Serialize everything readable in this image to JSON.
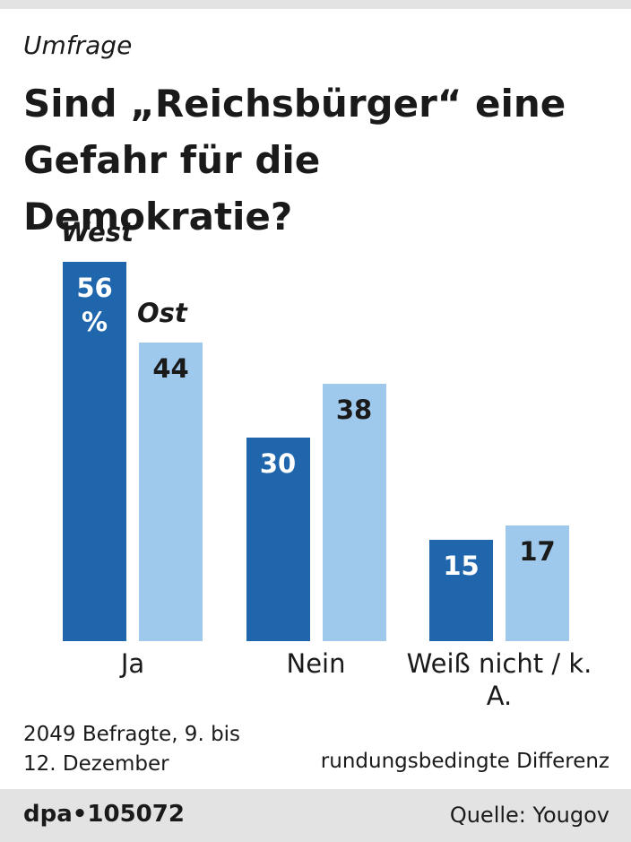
{
  "chart_data": {
    "type": "bar",
    "subtitle": "Umfrage",
    "title": "Sind „Reichsbürger“ eine Gefahr für die Demokratie?",
    "categories": [
      "Ja",
      "Nein",
      "Weiß nicht / k. A."
    ],
    "series": [
      {
        "name": "West",
        "color": "#1f66ad",
        "values": [
          56,
          30,
          15
        ],
        "value_labels": [
          "56 %",
          "30",
          "15"
        ]
      },
      {
        "name": "Ost",
        "color": "#9ec8ec",
        "values": [
          44,
          38,
          17
        ]
      }
    ],
    "note_left": "2049 Befragte, 9. bis 12. Dezember",
    "note_right": "rundungsbedingte Differenz",
    "footer_id": "dpa•105072",
    "source": "Quelle: Yougov"
  }
}
